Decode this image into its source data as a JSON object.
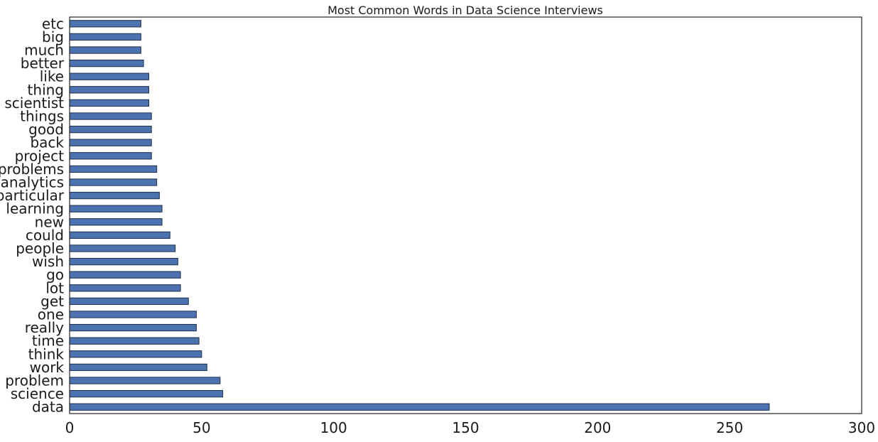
{
  "chart_data": {
    "type": "bar",
    "orientation": "horizontal",
    "title": "Most Common Words in Data Science Interviews",
    "xlabel": "",
    "ylabel": "",
    "xlim": [
      0,
      300
    ],
    "xticks": [
      0,
      50,
      100,
      150,
      200,
      250,
      300
    ],
    "grid": false,
    "legend": "none",
    "bar_color": "#4c72b0",
    "bar_edge_color": "#1f2f4a",
    "categories": [
      "data",
      "science",
      "problem",
      "work",
      "think",
      "time",
      "really",
      "one",
      "get",
      "lot",
      "go",
      "wish",
      "people",
      "could",
      "new",
      "learning",
      "particular",
      "analytics",
      "problems",
      "project",
      "back",
      "good",
      "things",
      "scientist",
      "thing",
      "like",
      "better",
      "much",
      "big",
      "etc"
    ],
    "values": [
      265,
      58,
      57,
      52,
      50,
      49,
      48,
      48,
      45,
      42,
      42,
      41,
      40,
      38,
      35,
      35,
      34,
      33,
      33,
      31,
      31,
      31,
      31,
      30,
      30,
      30,
      28,
      27,
      27,
      27
    ]
  }
}
